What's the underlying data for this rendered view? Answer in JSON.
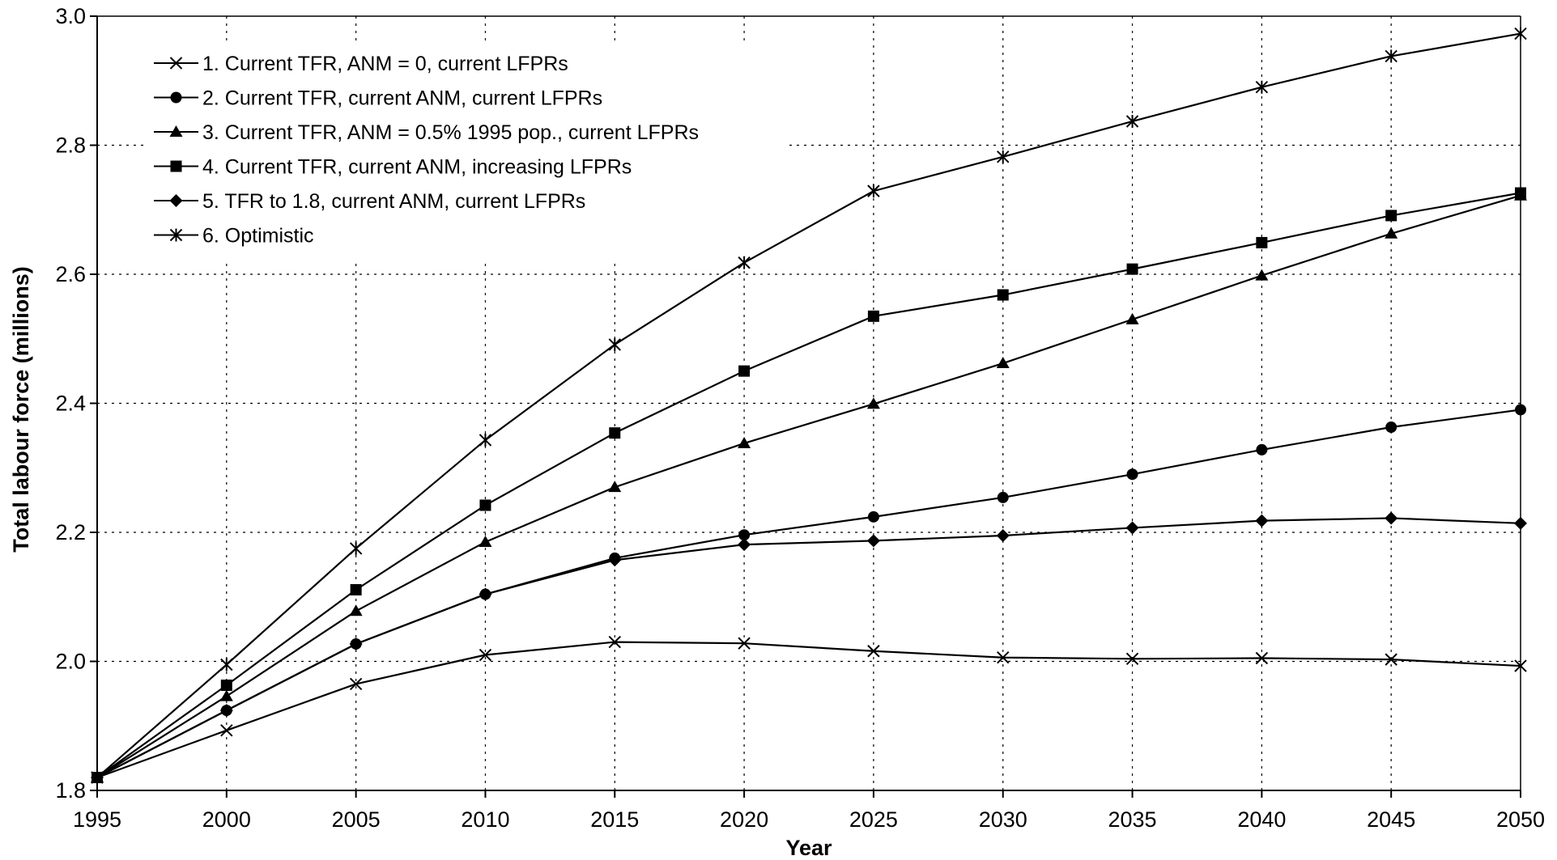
{
  "chart_data": {
    "type": "line",
    "title": "",
    "xlabel": "Year",
    "ylabel": "Total labour force (millions)",
    "x": [
      1995,
      2000,
      2005,
      2010,
      2015,
      2020,
      2025,
      2030,
      2035,
      2040,
      2045,
      2050
    ],
    "xlim": [
      1995,
      2050
    ],
    "ylim": [
      1.8,
      3.0
    ],
    "yticks": [
      "1.8",
      "2.0",
      "2.2",
      "2.4",
      "2.6",
      "2.8",
      "3.0"
    ],
    "xticks": [
      "1995",
      "2000",
      "2005",
      "2010",
      "2015",
      "2020",
      "2025",
      "2030",
      "2035",
      "2040",
      "2045",
      "2050"
    ],
    "grid": true,
    "legend_position": "top-left",
    "series": [
      {
        "name": "1. Current TFR, ANM = 0, current LFPRs",
        "marker": "x",
        "values": [
          1.82,
          1.893,
          1.965,
          2.01,
          2.03,
          2.028,
          2.016,
          2.006,
          2.004,
          2.005,
          2.003,
          1.993
        ]
      },
      {
        "name": "2. Current TFR, current ANM, current LFPRs",
        "marker": "circle",
        "values": [
          1.82,
          1.924,
          2.027,
          2.104,
          2.16,
          2.196,
          2.224,
          2.254,
          2.29,
          2.328,
          2.363,
          2.39
        ]
      },
      {
        "name": "3. Current TFR, ANM = 0.5% 1995 pop., current LFPRs",
        "marker": "triangle",
        "values": [
          1.82,
          1.946,
          2.078,
          2.185,
          2.27,
          2.338,
          2.399,
          2.462,
          2.53,
          2.598,
          2.663,
          2.722
        ]
      },
      {
        "name": "4. Current TFR, current ANM, increasing LFPRs",
        "marker": "square",
        "values": [
          1.82,
          1.963,
          2.111,
          2.242,
          2.354,
          2.45,
          2.535,
          2.568,
          2.608,
          2.649,
          2.691,
          2.726
        ]
      },
      {
        "name": "5. TFR to 1.8, current ANM, current LFPRs",
        "marker": "diamond",
        "values": [
          1.82,
          1.924,
          2.027,
          2.104,
          2.157,
          2.181,
          2.187,
          2.195,
          2.207,
          2.218,
          2.222,
          2.214
        ]
      },
      {
        "name": "6. Optimistic",
        "marker": "asterisk",
        "values": [
          1.82,
          1.995,
          2.175,
          2.343,
          2.491,
          2.618,
          2.729,
          2.782,
          2.837,
          2.89,
          2.938,
          2.973
        ]
      }
    ]
  }
}
